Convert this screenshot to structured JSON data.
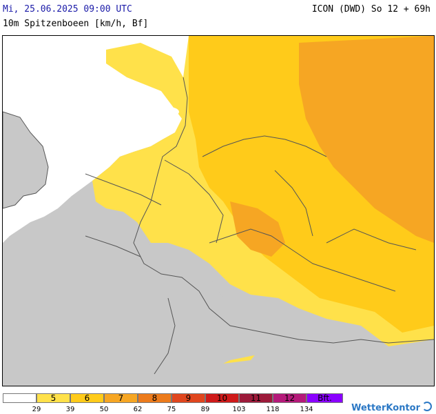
{
  "header": {
    "datetime": "Mi, 25.06.2025 09:00 UTC",
    "model_run": "ICON (DWD) So 12 + 69h",
    "parameter": "10m Spitzenboeen [km/h, Bf]"
  },
  "colors": {
    "ocean": "#ffffff",
    "land_below_threshold": "#c8c8c8",
    "bf5": "#ffe14a",
    "bf6": "#ffcb1a",
    "bf7": "#f6a623",
    "bf8": "#ec7b1c",
    "bf9": "#e0461e",
    "bf10": "#cf1a1a",
    "bf11": "#9c1a3a",
    "bf12": "#b51a7a",
    "bf12plus": "#8a00ff",
    "borders": "#555555"
  },
  "legend": {
    "bins": [
      {
        "label": "",
        "color": "#ffffff"
      },
      {
        "label": "5",
        "color": "#ffe14a"
      },
      {
        "label": "6",
        "color": "#ffcb1a"
      },
      {
        "label": "7",
        "color": "#f6a623"
      },
      {
        "label": "8",
        "color": "#ec7b1c"
      },
      {
        "label": "9",
        "color": "#e0461e"
      },
      {
        "label": "10",
        "color": "#cf1a1a"
      },
      {
        "label": "11",
        "color": "#9c1a3a"
      },
      {
        "label": "12",
        "color": "#b51a7a"
      },
      {
        "label": "Bft.",
        "color": "#8a00ff"
      }
    ],
    "thresholds": [
      "29",
      "39",
      "50",
      "62",
      "75",
      "89",
      "103",
      "118",
      "134"
    ]
  },
  "brand": {
    "name": "WetterKontor"
  }
}
